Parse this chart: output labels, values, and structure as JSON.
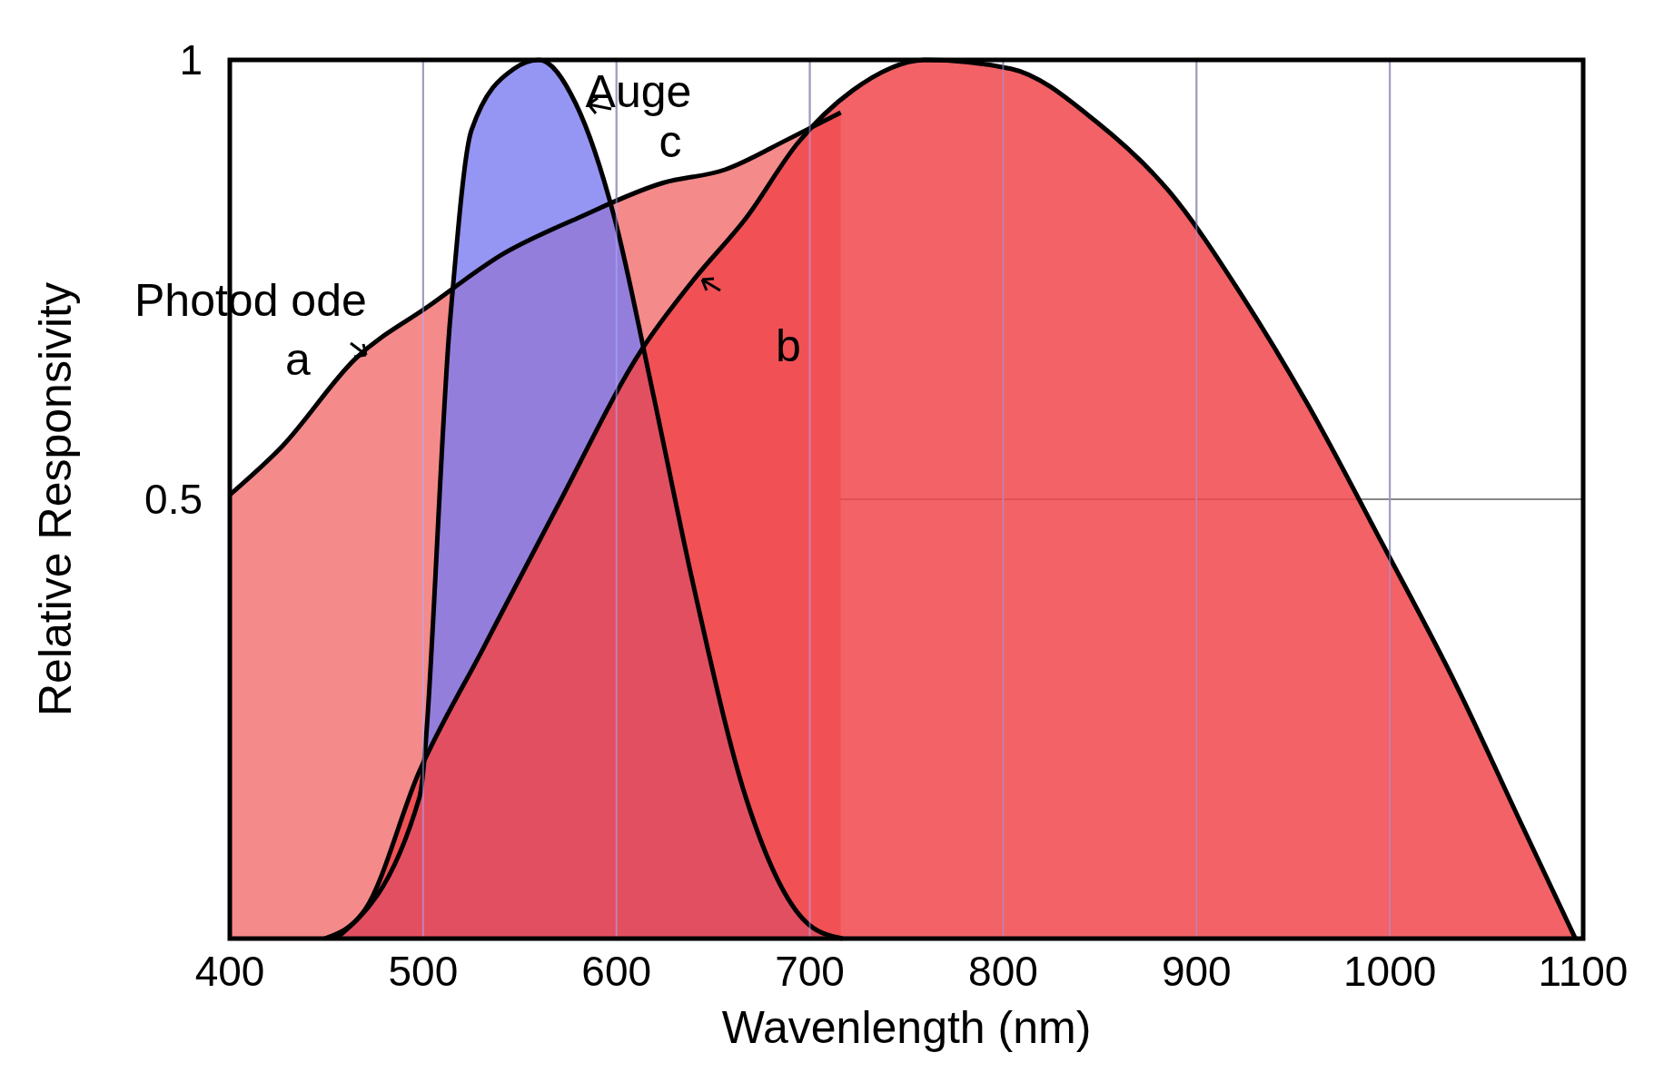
{
  "chart_data": {
    "type": "area",
    "xlabel": "Wavenlength (nm)",
    "ylabel": "Relative Responsivity",
    "xlim": [
      400,
      1100
    ],
    "xticks": [
      400,
      500,
      600,
      700,
      800,
      900,
      1000,
      1100
    ],
    "ylim": [
      0,
      1
    ],
    "yticks": [
      {
        "value": 0,
        "label": null
      },
      0.5,
      1
    ],
    "grid": true,
    "series": [
      {
        "color": "#f48a8a",
        "x": [
          400,
          427,
          465,
          503,
          542,
          580,
          624,
          656,
          689,
          716
        ],
        "values": [
          0.505,
          0.56,
          0.66,
          0.72,
          0.78,
          0.82,
          0.86,
          0.875,
          0.91,
          0.94
        ]
      },
      {
        "color": "#7b7bf0",
        "x": [
          455,
          498,
          514,
          525,
          547,
          560,
          579,
          599,
          618,
          640,
          667,
          700,
          717
        ],
        "values": [
          0,
          0.16,
          0.705,
          0.92,
          0.99,
          1,
          0.95,
          0.82,
          0.63,
          0.4,
          0.16,
          0.015,
          0
        ]
      },
      {
        "color": "#f0474b",
        "x": [
          449,
          470,
          498,
          531,
          569,
          613,
          640,
          667,
          694,
          722,
          760,
          804,
          848,
          886,
          924,
          957,
          996,
          1034,
          1066,
          1096
        ],
        "values": [
          0,
          0.033,
          0.19,
          0.33,
          0.49,
          0.67,
          0.75,
          0.82,
          0.906,
          0.965,
          1,
          0.99,
          0.93,
          0.85,
          0.73,
          0.61,
          0.45,
          0.29,
          0.14,
          0
        ]
      }
    ],
    "annotations": [
      "Photod ode",
      "a",
      "Auge",
      "c",
      "b"
    ]
  }
}
